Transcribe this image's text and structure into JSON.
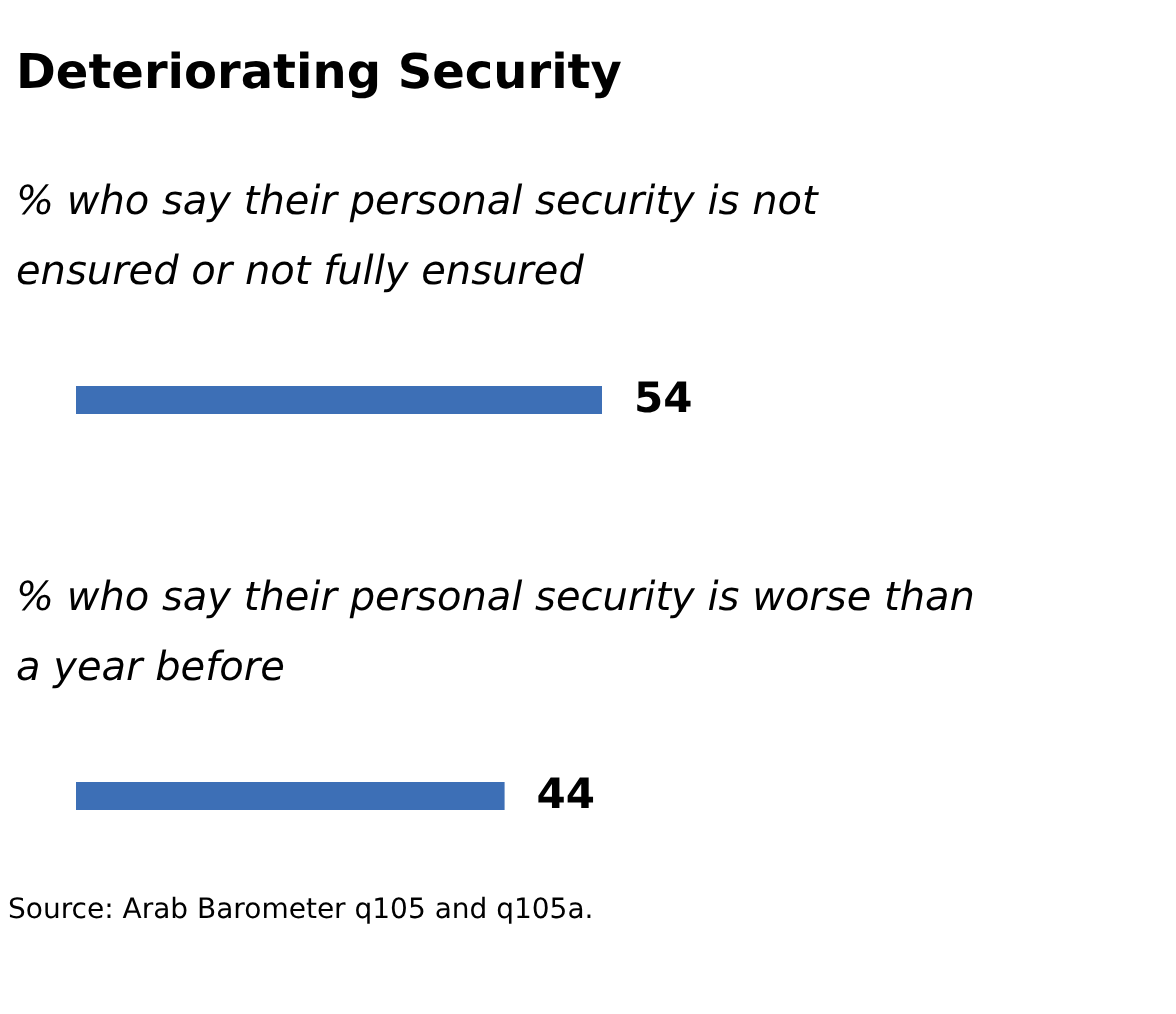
{
  "chart_data": {
    "type": "bar",
    "orientation": "horizontal",
    "title": "Deteriorating Security",
    "categories": [
      "% who say their personal security is not ensured or not fully ensured",
      "% who say their personal security is worse than a year before"
    ],
    "values": [
      54,
      44
    ],
    "color": "#3d6fb6",
    "data_labels": true,
    "annotations": [
      "Source: Arab Barometer q105 and q105a."
    ]
  }
}
